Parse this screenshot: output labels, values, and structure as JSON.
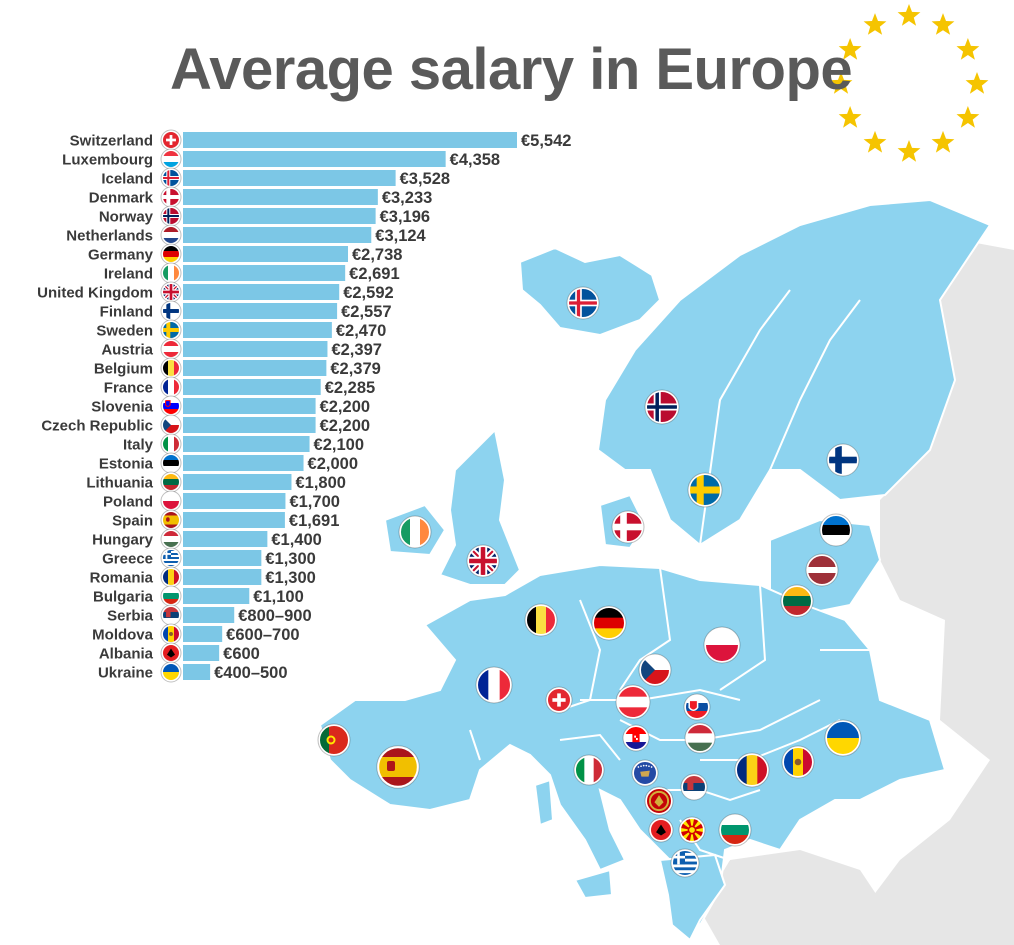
{
  "title": "Average salary in Europe",
  "colors": {
    "bar": "#7cc7e6",
    "land": "#8dd3ef",
    "nonfocus_land": "#e6e6e6",
    "border": "#ffffff",
    "star": "#f5c400",
    "text": "#3a3a3a"
  },
  "chart_data": {
    "type": "bar",
    "orientation": "horizontal",
    "title": "Average salary in Europe",
    "unit": "€",
    "categories": [
      "Switzerland",
      "Luxembourg",
      "Iceland",
      "Denmark",
      "Norway",
      "Netherlands",
      "Germany",
      "Ireland",
      "United Kingdom",
      "Finland",
      "Sweden",
      "Austria",
      "Belgium",
      "France",
      "Slovenia",
      "Czech Republic",
      "Italy",
      "Estonia",
      "Lithuania",
      "Poland",
      "Spain",
      "Hungary",
      "Greece",
      "Romania",
      "Bulgaria",
      "Serbia",
      "Moldova",
      "Albania",
      "Ukraine"
    ],
    "values": [
      5542,
      4358,
      3528,
      3233,
      3196,
      3124,
      2738,
      2691,
      2592,
      2557,
      2470,
      2397,
      2379,
      2285,
      2200,
      2200,
      2100,
      2000,
      1800,
      1700,
      1691,
      1400,
      1300,
      1300,
      1100,
      850,
      650,
      600,
      450
    ],
    "value_labels": [
      "€5,542",
      "€4,358",
      "€3,528",
      "€3,233",
      "€3,196",
      "€3,124",
      "€2,738",
      "€2,691",
      "€2,592",
      "€2,557",
      "€2,470",
      "€2,397",
      "€2,379",
      "€2,285",
      "€2,200",
      "€2,200",
      "€2,100",
      "€2,000",
      "€1,800",
      "€1,700",
      "€1,691",
      "€1,400",
      "€1,300",
      "€1,300",
      "€1,100",
      "€800–900",
      "€600–700",
      "€600",
      "€400–500"
    ],
    "flags": [
      "ch",
      "lu",
      "is",
      "dk",
      "no",
      "nl",
      "de",
      "ie",
      "gb",
      "fi",
      "se",
      "at",
      "be",
      "fr",
      "si",
      "cz",
      "it",
      "ee",
      "lt",
      "pl",
      "es",
      "hu",
      "gr",
      "ro",
      "bg",
      "rs",
      "md",
      "al",
      "ua"
    ],
    "xlim": [
      0,
      5542
    ],
    "grid": false,
    "legend": "none"
  },
  "map_markers": [
    "is",
    "no",
    "fi",
    "se",
    "ee",
    "dk",
    "ie",
    "lv",
    "gb",
    "lt",
    "be",
    "de",
    "pl",
    "nl",
    "fr",
    "cz",
    "ch",
    "at",
    "sk",
    "pt",
    "es",
    "hr",
    "hu",
    "ua",
    "si",
    "it",
    "xk",
    "rs",
    "ro",
    "md",
    "me",
    "mk",
    "bg",
    "al",
    "gr"
  ]
}
